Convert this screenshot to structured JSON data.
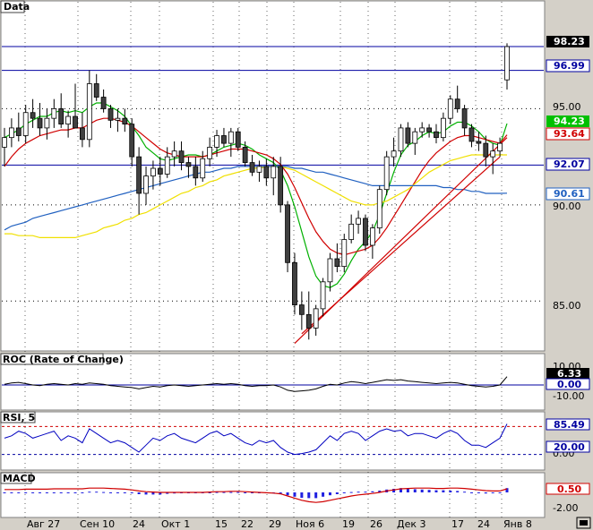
{
  "panels": {
    "price": {
      "title": "Data"
    },
    "roc": {
      "title": "ROC (Rate of Change)"
    },
    "rsi": {
      "title": "RSI, 5"
    },
    "macd": {
      "title": "MACD"
    }
  },
  "x_axis_labels": [
    "Авг 27",
    "Сен 10",
    "24",
    "Окт 1",
    "15",
    "22",
    "29",
    "Ноя 6",
    "19",
    "26",
    "Дек 3",
    "17",
    "24",
    "Янв 8"
  ],
  "price_axis_ticks": [
    "95.00",
    "90.00",
    "85.00"
  ],
  "price_badges": [
    {
      "text": "98.23",
      "bg": "#000000",
      "fg": "#ffffff"
    },
    {
      "text": "96.99",
      "bg": "#ffffff",
      "fg": "#0000a0"
    },
    {
      "text": "94.23",
      "bg": "#00c000",
      "fg": "#ffffff"
    },
    {
      "text": "93.64",
      "bg": "#ffffff",
      "fg": "#d00000"
    },
    {
      "text": "92.07",
      "bg": "#ffffff",
      "fg": "#0000a0"
    },
    {
      "text": "90.61",
      "bg": "#ffffff",
      "fg": "#2060c0"
    }
  ],
  "roc_axis": {
    "ticks": [
      "10.00",
      "-10.00"
    ],
    "badges": [
      {
        "text": "6.33",
        "bg": "#000000",
        "fg": "#ffffff"
      },
      {
        "text": "0.00",
        "bg": "#ffffff",
        "fg": "#0000a0"
      }
    ]
  },
  "rsi_axis": {
    "ticks": [
      "0.00"
    ],
    "badges": [
      {
        "text": "85.49",
        "bg": "#ffffff",
        "fg": "#0000a0"
      },
      {
        "text": "20.00",
        "bg": "#ffffff",
        "fg": "#0000a0"
      }
    ]
  },
  "macd_axis": {
    "ticks": [
      "-2.00"
    ],
    "badges": [
      {
        "text": "0.50",
        "bg": "#ffffff",
        "fg": "#d00000"
      }
    ]
  },
  "chart_data": {
    "type": "candlestick",
    "ylim": [
      82.5,
      100.0
    ],
    "horizontal_lines": [
      98.23,
      96.99,
      92.07
    ],
    "candles": [
      [
        93.0,
        94.0,
        92.0,
        93.5
      ],
      [
        93.5,
        94.5,
        93.0,
        94.0
      ],
      [
        94.0,
        94.8,
        93.3,
        93.6
      ],
      [
        93.6,
        95.2,
        93.2,
        94.8
      ],
      [
        94.8,
        95.5,
        94.0,
        94.5
      ],
      [
        94.5,
        95.3,
        93.6,
        94.0
      ],
      [
        94.0,
        95.0,
        93.4,
        94.5
      ],
      [
        94.5,
        95.5,
        94.0,
        95.0
      ],
      [
        95.0,
        95.8,
        94.0,
        94.2
      ],
      [
        94.2,
        94.9,
        93.5,
        94.6
      ],
      [
        94.6,
        96.3,
        94.0,
        94.0
      ],
      [
        94.0,
        94.8,
        93.0,
        93.4
      ],
      [
        93.4,
        97.0,
        93.0,
        96.3
      ],
      [
        96.3,
        96.8,
        95.4,
        95.6
      ],
      [
        95.6,
        96.0,
        94.8,
        95.0
      ],
      [
        95.0,
        95.2,
        94.0,
        94.4
      ],
      [
        94.4,
        95.0,
        93.8,
        94.5
      ],
      [
        94.5,
        95.0,
        93.8,
        94.2
      ],
      [
        94.2,
        94.5,
        92.0,
        92.5
      ],
      [
        92.5,
        93.0,
        89.5,
        90.6
      ],
      [
        90.6,
        92.0,
        90.0,
        91.5
      ],
      [
        91.5,
        92.3,
        90.8,
        91.9
      ],
      [
        91.9,
        92.5,
        91.0,
        91.6
      ],
      [
        91.6,
        93.0,
        91.4,
        92.5
      ],
      [
        92.5,
        93.3,
        92.0,
        92.8
      ],
      [
        92.8,
        93.3,
        91.8,
        92.2
      ],
      [
        92.2,
        92.5,
        91.4,
        92.0
      ],
      [
        92.0,
        92.5,
        91.0,
        91.4
      ],
      [
        91.4,
        92.8,
        91.2,
        92.4
      ],
      [
        92.4,
        93.5,
        92.0,
        93.0
      ],
      [
        93.0,
        93.9,
        92.5,
        93.6
      ],
      [
        93.6,
        94.0,
        93.0,
        93.2
      ],
      [
        93.2,
        94.0,
        92.5,
        93.8
      ],
      [
        93.8,
        94.0,
        92.8,
        93.0
      ],
      [
        93.0,
        93.3,
        92.0,
        92.2
      ],
      [
        92.2,
        92.6,
        91.5,
        91.7
      ],
      [
        91.7,
        92.3,
        91.2,
        92.0
      ],
      [
        92.0,
        92.4,
        91.0,
        91.4
      ],
      [
        91.4,
        92.5,
        90.5,
        92.0
      ],
      [
        92.0,
        92.5,
        89.6,
        90.0
      ],
      [
        90.0,
        90.2,
        86.5,
        87.0
      ],
      [
        87.0,
        87.5,
        84.3,
        84.8
      ],
      [
        84.8,
        85.5,
        83.5,
        84.3
      ],
      [
        84.3,
        85.5,
        83.0,
        83.6
      ],
      [
        83.6,
        84.8,
        83.2,
        84.6
      ],
      [
        84.6,
        86.2,
        84.2,
        86.0
      ],
      [
        86.0,
        87.5,
        85.5,
        87.2
      ],
      [
        87.2,
        88.0,
        86.5,
        86.8
      ],
      [
        86.8,
        88.5,
        86.5,
        88.2
      ],
      [
        88.2,
        89.5,
        88.0,
        89.0
      ],
      [
        89.0,
        89.7,
        88.5,
        89.3
      ],
      [
        89.3,
        89.5,
        87.6,
        87.9
      ],
      [
        87.9,
        89.0,
        87.2,
        88.8
      ],
      [
        88.8,
        91.0,
        88.5,
        90.8
      ],
      [
        90.8,
        92.8,
        90.5,
        92.5
      ],
      [
        92.5,
        93.5,
        92.0,
        92.8
      ],
      [
        92.8,
        94.2,
        92.5,
        94.0
      ],
      [
        94.0,
        94.3,
        93.0,
        93.2
      ],
      [
        93.2,
        94.0,
        92.6,
        93.8
      ],
      [
        93.8,
        94.3,
        93.5,
        94.0
      ],
      [
        94.0,
        94.2,
        93.5,
        93.8
      ],
      [
        93.8,
        94.2,
        93.2,
        93.5
      ],
      [
        93.5,
        94.8,
        93.3,
        94.5
      ],
      [
        94.5,
        95.7,
        94.2,
        95.5
      ],
      [
        95.5,
        96.2,
        94.8,
        95.0
      ],
      [
        95.0,
        95.2,
        93.6,
        94.0
      ],
      [
        94.0,
        94.2,
        93.0,
        93.3
      ],
      [
        93.3,
        93.8,
        92.8,
        93.2
      ],
      [
        93.2,
        93.6,
        92.0,
        92.5
      ],
      [
        92.5,
        93.2,
        91.6,
        92.8
      ],
      [
        92.8,
        93.5,
        92.5,
        93.2
      ],
      [
        96.5,
        98.4,
        96.0,
        98.23
      ]
    ],
    "overlays": [
      {
        "name": "",
        "color": "#00b000",
        "values": [
          93.5,
          93.7,
          93.9,
          94.2,
          94.4,
          94.6,
          94.6,
          94.8,
          94.9,
          94.8,
          94.9,
          94.8,
          95.1,
          95.3,
          95.3,
          95.1,
          94.9,
          94.6,
          94.1,
          93.6,
          93.0,
          92.7,
          92.4,
          92.3,
          92.4,
          92.5,
          92.6,
          92.6,
          92.5,
          92.6,
          92.8,
          93.0,
          93.1,
          93.2,
          93.1,
          92.9,
          92.6,
          92.4,
          92.2,
          91.8,
          91.0,
          89.9,
          88.6,
          87.3,
          86.3,
          85.8,
          85.7,
          85.9,
          86.4,
          87.1,
          87.7,
          88.1,
          88.6,
          89.5,
          90.6,
          91.7,
          92.6,
          93.1,
          93.3,
          93.6,
          93.8,
          93.7,
          93.8,
          94.1,
          94.3,
          94.3,
          94.1,
          93.8,
          93.4,
          93.2,
          93.1,
          94.23
        ]
      },
      {
        "name": "",
        "color": "#d00000",
        "values": [
          92.0,
          92.5,
          92.9,
          93.2,
          93.4,
          93.6,
          93.7,
          93.8,
          93.9,
          93.9,
          94.0,
          94.0,
          94.2,
          94.4,
          94.5,
          94.5,
          94.4,
          94.3,
          94.1,
          93.8,
          93.5,
          93.2,
          92.9,
          92.7,
          92.6,
          92.5,
          92.5,
          92.5,
          92.5,
          92.6,
          92.7,
          92.8,
          92.9,
          92.9,
          92.9,
          92.8,
          92.7,
          92.6,
          92.4,
          92.1,
          91.6,
          90.9,
          90.1,
          89.3,
          88.6,
          88.1,
          87.7,
          87.5,
          87.4,
          87.5,
          87.6,
          87.7,
          87.9,
          88.3,
          88.8,
          89.4,
          90.0,
          90.6,
          91.2,
          91.8,
          92.3,
          92.7,
          93.0,
          93.3,
          93.5,
          93.6,
          93.6,
          93.5,
          93.4,
          93.3,
          93.2,
          93.64
        ]
      },
      {
        "name": "",
        "color": "#f0e000",
        "values": [
          88.5,
          88.5,
          88.4,
          88.4,
          88.4,
          88.3,
          88.3,
          88.3,
          88.3,
          88.3,
          88.3,
          88.4,
          88.5,
          88.6,
          88.8,
          88.9,
          89.0,
          89.2,
          89.3,
          89.5,
          89.6,
          89.8,
          90.0,
          90.2,
          90.4,
          90.6,
          90.7,
          90.9,
          91.0,
          91.2,
          91.3,
          91.5,
          91.6,
          91.7,
          91.8,
          91.9,
          91.9,
          92.0,
          92.0,
          92.0,
          91.9,
          91.8,
          91.6,
          91.4,
          91.2,
          91.0,
          90.8,
          90.6,
          90.4,
          90.2,
          90.1,
          90.0,
          90.0,
          90.1,
          90.2,
          90.4,
          90.6,
          90.8,
          91.1,
          91.4,
          91.7,
          91.9,
          92.1,
          92.3,
          92.4,
          92.5,
          92.6,
          92.6,
          92.6,
          92.6,
          92.6,
          92.6
        ]
      },
      {
        "name": "",
        "color": "#2060c0",
        "values": [
          88.7,
          88.9,
          89.0,
          89.1,
          89.3,
          89.4,
          89.5,
          89.6,
          89.7,
          89.8,
          89.9,
          90.0,
          90.1,
          90.2,
          90.3,
          90.4,
          90.5,
          90.6,
          90.7,
          90.8,
          90.9,
          91.0,
          91.1,
          91.2,
          91.3,
          91.4,
          91.5,
          91.6,
          91.7,
          91.7,
          91.8,
          91.9,
          91.9,
          92.0,
          92.0,
          92.0,
          92.0,
          92.0,
          92.0,
          92.0,
          92.0,
          91.9,
          91.9,
          91.8,
          91.7,
          91.7,
          91.6,
          91.5,
          91.4,
          91.3,
          91.2,
          91.1,
          91.0,
          91.0,
          91.0,
          91.0,
          91.0,
          91.0,
          91.0,
          91.0,
          91.0,
          91.0,
          90.9,
          90.9,
          90.8,
          90.8,
          90.7,
          90.7,
          90.6,
          90.6,
          90.6,
          90.61
        ]
      }
    ],
    "trendlines": [
      {
        "color": "#d00000",
        "from": [
          41,
          82.8
        ],
        "to": [
          71,
          93.5
        ]
      },
      {
        "color": "#d00000",
        "from": [
          42,
          83.3
        ],
        "to": [
          70,
          92.5
        ]
      }
    ],
    "roc": {
      "ylim": [
        -15,
        15
      ],
      "zero": 0,
      "values": [
        0.5,
        1.5,
        2.0,
        1.0,
        0.0,
        -0.5,
        0.5,
        1.0,
        0.5,
        0.0,
        1.0,
        0.5,
        1.5,
        1.0,
        0.5,
        -0.5,
        -1.0,
        -1.5,
        -2.0,
        -3.0,
        -2.0,
        -1.0,
        -1.5,
        -0.5,
        0.0,
        -0.5,
        -1.0,
        -0.5,
        0.0,
        0.5,
        1.0,
        0.5,
        1.0,
        0.5,
        -0.5,
        -1.0,
        -0.5,
        -0.5,
        0.0,
        -1.5,
        -4.0,
        -5.0,
        -4.5,
        -4.0,
        -3.0,
        -1.0,
        0.5,
        0.0,
        1.5,
        2.5,
        2.0,
        1.0,
        2.0,
        3.0,
        4.0,
        3.5,
        4.0,
        3.0,
        2.5,
        2.0,
        1.5,
        1.0,
        1.5,
        2.0,
        1.5,
        0.5,
        -0.5,
        -1.0,
        -1.5,
        -1.0,
        0.0,
        6.33
      ]
    },
    "rsi": {
      "ylim": [
        0,
        100
      ],
      "levels": [
        80,
        20
      ],
      "values": [
        55,
        60,
        70,
        65,
        55,
        60,
        65,
        70,
        50,
        60,
        55,
        45,
        75,
        65,
        55,
        45,
        50,
        45,
        35,
        25,
        40,
        55,
        50,
        60,
        65,
        55,
        50,
        45,
        55,
        65,
        70,
        60,
        65,
        55,
        45,
        40,
        50,
        45,
        50,
        35,
        25,
        20,
        22,
        25,
        30,
        45,
        60,
        50,
        65,
        70,
        65,
        50,
        60,
        70,
        75,
        70,
        72,
        60,
        65,
        65,
        60,
        55,
        65,
        72,
        65,
        50,
        40,
        40,
        35,
        45,
        55,
        85.49
      ]
    },
    "macd": {
      "ylim": [
        -3,
        2
      ],
      "line_color": "#d00000",
      "hist_color": "#2020e0",
      "line": [
        0.4,
        0.4,
        0.4,
        0.45,
        0.45,
        0.45,
        0.45,
        0.5,
        0.5,
        0.5,
        0.5,
        0.5,
        0.6,
        0.6,
        0.6,
        0.55,
        0.5,
        0.45,
        0.35,
        0.2,
        0.1,
        0.05,
        0.0,
        0.0,
        0.0,
        0.0,
        0.0,
        0.0,
        0.0,
        0.05,
        0.1,
        0.1,
        0.15,
        0.15,
        0.1,
        0.05,
        0.0,
        -0.05,
        -0.1,
        -0.2,
        -0.5,
        -0.8,
        -1.1,
        -1.3,
        -1.4,
        -1.3,
        -1.1,
        -0.9,
        -0.7,
        -0.5,
        -0.35,
        -0.25,
        -0.15,
        0.0,
        0.2,
        0.35,
        0.5,
        0.55,
        0.6,
        0.6,
        0.6,
        0.55,
        0.55,
        0.6,
        0.6,
        0.55,
        0.45,
        0.35,
        0.25,
        0.2,
        0.2,
        0.5
      ],
      "hist": [
        0,
        0,
        0,
        0,
        0,
        0,
        0,
        0,
        0,
        0,
        0,
        0,
        0.1,
        0.1,
        0.05,
        0,
        0,
        0,
        -0.1,
        -0.25,
        -0.3,
        -0.3,
        -0.3,
        -0.2,
        -0.15,
        -0.1,
        -0.1,
        -0.1,
        -0.05,
        0,
        0.05,
        0.05,
        0.05,
        0.05,
        0,
        0,
        -0.05,
        -0.05,
        -0.1,
        -0.2,
        -0.4,
        -0.6,
        -0.75,
        -0.8,
        -0.8,
        -0.6,
        -0.4,
        -0.25,
        -0.1,
        0.05,
        0.1,
        0.1,
        0.15,
        0.25,
        0.4,
        0.5,
        0.6,
        0.5,
        0.45,
        0.4,
        0.35,
        0.3,
        0.3,
        0.25,
        0.2,
        0.1,
        0,
        -0.1,
        -0.15,
        -0.1,
        0,
        0.6
      ]
    }
  }
}
